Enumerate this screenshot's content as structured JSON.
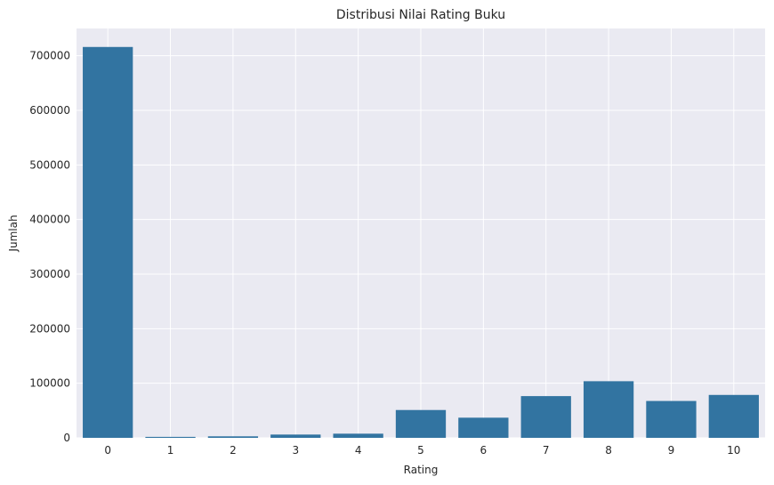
{
  "chart_data": {
    "type": "bar",
    "title": "Distribusi Nilai Rating Buku",
    "xlabel": "Rating",
    "ylabel": "Jumlah",
    "categories": [
      "0",
      "1",
      "2",
      "3",
      "4",
      "5",
      "6",
      "7",
      "8",
      "9",
      "10"
    ],
    "values": [
      716109,
      1770,
      2759,
      5996,
      7617,
      50974,
      36924,
      76457,
      103736,
      67541,
      78610
    ],
    "ylim": [
      0,
      750000
    ],
    "yticks": [
      0,
      100000,
      200000,
      300000,
      400000,
      500000,
      600000,
      700000
    ],
    "ytick_labels": [
      "0",
      "100000",
      "200000",
      "300000",
      "400000",
      "500000",
      "600000",
      "700000"
    ],
    "grid": true,
    "colors": {
      "bar": "#3274a1",
      "background": "#eaeaf2",
      "grid": "#ffffff"
    }
  }
}
